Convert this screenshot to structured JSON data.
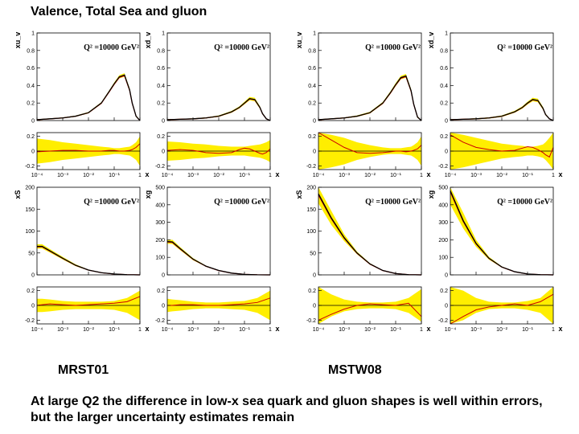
{
  "slide": {
    "title": "Valence, Total Sea and gluon",
    "label_left": "MRST01",
    "label_right": "MSTW08",
    "caption": "At large Q2 the difference in low-x sea quark and gluon shapes is well within errors, but the larger uncertainty estimates remain"
  },
  "colors": {
    "band": "#ffee00",
    "central": "#000000",
    "alt": "#cc0000",
    "frame": "#000000"
  },
  "chart_data": [
    {
      "type": "line",
      "id": "mrst01-xuv",
      "set": "MRST01",
      "ylabel": "xu_v",
      "annotation": "Q² =10000 GeV²",
      "xlabel": "x",
      "x_ticks": [
        "10⁻⁴",
        "10⁻³",
        "10⁻²",
        "10⁻¹",
        "1"
      ],
      "ylim": [
        0,
        1
      ],
      "y_ticks": [
        0,
        0.2,
        0.4,
        0.6,
        0.8,
        1
      ],
      "ratio_ylim": [
        -0.25,
        0.25
      ],
      "ratio_ticks": [
        -0.2,
        0,
        0.2
      ],
      "x": [
        -4,
        -3.5,
        -3,
        -2.5,
        -2,
        -1.5,
        -1.2,
        -1,
        -0.8,
        -0.6,
        -0.4,
        -0.3,
        -0.15,
        0
      ],
      "central": [
        0.01,
        0.02,
        0.03,
        0.05,
        0.09,
        0.2,
        0.33,
        0.42,
        0.5,
        0.52,
        0.35,
        0.2,
        0.05,
        0.0
      ],
      "band": [
        0.005,
        0.005,
        0.005,
        0.006,
        0.008,
        0.01,
        0.012,
        0.015,
        0.018,
        0.02,
        0.02,
        0.015,
        0.01,
        0.005
      ],
      "ratio_band": [
        0.17,
        0.15,
        0.12,
        0.1,
        0.08,
        0.06,
        0.05,
        0.04,
        0.04,
        0.05,
        0.06,
        0.08,
        0.12,
        0.2
      ],
      "ratio_alt": [
        -0.01,
        0,
        0.01,
        0.01,
        0,
        0,
        0.01,
        0.01,
        0,
        0,
        0.01,
        0.02,
        0.05,
        0.1
      ]
    },
    {
      "type": "line",
      "id": "mrst01-xdv",
      "set": "MRST01",
      "ylabel": "xd_v",
      "annotation": "Q² =10000 GeV²",
      "xlabel": "x",
      "x_ticks": [
        "10⁻⁴",
        "10⁻³",
        "10⁻²",
        "10⁻¹",
        "1"
      ],
      "ylim": [
        0,
        1
      ],
      "y_ticks": [
        0,
        0.2,
        0.4,
        0.6,
        0.8,
        1
      ],
      "ratio_ylim": [
        -0.25,
        0.25
      ],
      "ratio_ticks": [
        -0.2,
        0,
        0.2
      ],
      "x": [
        -4,
        -3.5,
        -3,
        -2.5,
        -2,
        -1.5,
        -1.2,
        -1,
        -0.8,
        -0.6,
        -0.4,
        -0.3,
        -0.15,
        0
      ],
      "central": [
        0.01,
        0.015,
        0.02,
        0.03,
        0.05,
        0.1,
        0.15,
        0.2,
        0.25,
        0.24,
        0.15,
        0.08,
        0.02,
        0.0
      ],
      "band": [
        0.005,
        0.005,
        0.005,
        0.006,
        0.008,
        0.01,
        0.012,
        0.015,
        0.02,
        0.02,
        0.015,
        0.01,
        0.005,
        0.003
      ],
      "ratio_band": [
        0.13,
        0.12,
        0.1,
        0.09,
        0.07,
        0.06,
        0.06,
        0.06,
        0.07,
        0.08,
        0.09,
        0.1,
        0.12,
        0.15
      ],
      "ratio_alt": [
        0.01,
        0.02,
        0.01,
        -0.02,
        -0.03,
        -0.02,
        0.02,
        0.04,
        0.03,
        0.0,
        -0.03,
        -0.04,
        -0.02,
        0.03
      ]
    },
    {
      "type": "line",
      "id": "mstw08-xuv",
      "set": "MSTW08",
      "ylabel": "xu_v",
      "annotation": "Q² =10000 GeV²",
      "xlabel": "x",
      "x_ticks": [
        "10⁻⁴",
        "10⁻³",
        "10⁻²",
        "10⁻¹",
        "1"
      ],
      "ylim": [
        0,
        1
      ],
      "y_ticks": [
        0,
        0.2,
        0.4,
        0.6,
        0.8,
        1
      ],
      "ratio_ylim": [
        -0.25,
        0.25
      ],
      "ratio_ticks": [
        -0.2,
        0,
        0.2
      ],
      "x": [
        -4,
        -3.5,
        -3,
        -2.5,
        -2,
        -1.5,
        -1.2,
        -1,
        -0.8,
        -0.6,
        -0.4,
        -0.3,
        -0.15,
        0
      ],
      "central": [
        0.01,
        0.02,
        0.03,
        0.05,
        0.09,
        0.2,
        0.32,
        0.41,
        0.49,
        0.51,
        0.34,
        0.19,
        0.04,
        0.0
      ],
      "band": [
        0.005,
        0.005,
        0.006,
        0.008,
        0.01,
        0.012,
        0.015,
        0.018,
        0.02,
        0.022,
        0.02,
        0.015,
        0.01,
        0.005
      ],
      "ratio_band": [
        0.25,
        0.22,
        0.18,
        0.12,
        0.08,
        0.05,
        0.04,
        0.04,
        0.04,
        0.05,
        0.06,
        0.08,
        0.12,
        0.2
      ],
      "ratio_alt": [
        0.25,
        0.15,
        0.05,
        -0.02,
        -0.03,
        -0.02,
        -0.01,
        0,
        0,
        -0.01,
        0,
        0.01,
        0.03,
        0.08
      ]
    },
    {
      "type": "line",
      "id": "mstw08-xdv",
      "set": "MSTW08",
      "ylabel": "xd_v",
      "annotation": "Q² =10000 GeV²",
      "xlabel": "x",
      "x_ticks": [
        "10⁻⁴",
        "10⁻³",
        "10⁻²",
        "10⁻¹",
        "1"
      ],
      "ylim": [
        0,
        1
      ],
      "y_ticks": [
        0,
        0.2,
        0.4,
        0.6,
        0.8,
        1
      ],
      "ratio_ylim": [
        -0.25,
        0.25
      ],
      "ratio_ticks": [
        -0.2,
        0,
        0.2
      ],
      "x": [
        -4,
        -3.5,
        -3,
        -2.5,
        -2,
        -1.5,
        -1.2,
        -1,
        -0.8,
        -0.6,
        -0.4,
        -0.3,
        -0.15,
        0
      ],
      "central": [
        0.01,
        0.015,
        0.02,
        0.03,
        0.05,
        0.1,
        0.15,
        0.2,
        0.24,
        0.23,
        0.14,
        0.07,
        0.02,
        0.0
      ],
      "band": [
        0.005,
        0.005,
        0.006,
        0.007,
        0.009,
        0.011,
        0.013,
        0.016,
        0.02,
        0.02,
        0.016,
        0.01,
        0.005,
        0.003
      ],
      "ratio_band": [
        0.25,
        0.22,
        0.18,
        0.14,
        0.1,
        0.08,
        0.07,
        0.06,
        0.06,
        0.07,
        0.09,
        0.12,
        0.18,
        0.25
      ],
      "ratio_alt": [
        0.22,
        0.12,
        0.05,
        0.02,
        0.0,
        0.01,
        0.04,
        0.06,
        0.05,
        0.02,
        -0.02,
        -0.05,
        -0.08,
        0.05
      ]
    },
    {
      "type": "line",
      "id": "mrst01-xs",
      "set": "MRST01",
      "ylabel": "xS",
      "annotation": "Q² =10000 GeV²",
      "xlabel": "x",
      "x_ticks": [
        "10⁻⁴",
        "10⁻³",
        "10⁻²",
        "10⁻¹",
        "1"
      ],
      "ylim": [
        0,
        200
      ],
      "y_ticks": [
        0,
        50,
        100,
        150,
        200
      ],
      "ratio_ylim": [
        -0.25,
        0.25
      ],
      "ratio_ticks": [
        -0.2,
        0,
        0.2
      ],
      "x": [
        -4,
        -3.8,
        -3.5,
        -3,
        -2.5,
        -2,
        -1.5,
        -1,
        -0.5,
        0
      ],
      "central": [
        65,
        65,
        55,
        38,
        22,
        11,
        5,
        2,
        0.5,
        0
      ],
      "band": [
        5,
        5,
        4,
        3,
        2,
        1,
        0.5,
        0.3,
        0.2,
        0.1
      ],
      "ratio_band": [
        0.09,
        0.09,
        0.08,
        0.06,
        0.05,
        0.05,
        0.05,
        0.06,
        0.1,
        0.2
      ],
      "ratio_alt": [
        0.0,
        0.01,
        0.02,
        0.01,
        0.0,
        0.01,
        0.02,
        0.03,
        0.05,
        0.12
      ]
    },
    {
      "type": "line",
      "id": "mrst01-xg",
      "set": "MRST01",
      "ylabel": "xg",
      "annotation": "Q² =10000 GeV²",
      "xlabel": "x",
      "x_ticks": [
        "10⁻⁴",
        "10⁻³",
        "10⁻²",
        "10⁻¹",
        "1"
      ],
      "ylim": [
        0,
        500
      ],
      "y_ticks": [
        0,
        100,
        200,
        300,
        400,
        500
      ],
      "ratio_ylim": [
        -0.25,
        0.25
      ],
      "ratio_ticks": [
        -0.2,
        0,
        0.2
      ],
      "x": [
        -4,
        -3.8,
        -3.5,
        -3,
        -2.5,
        -2,
        -1.5,
        -1,
        -0.5,
        0
      ],
      "central": [
        190,
        188,
        150,
        90,
        50,
        25,
        10,
        3,
        0.5,
        0
      ],
      "band": [
        12,
        12,
        9,
        6,
        3,
        1.5,
        0.6,
        0.3,
        0.2,
        0.1
      ],
      "ratio_band": [
        0.09,
        0.08,
        0.07,
        0.05,
        0.04,
        0.04,
        0.05,
        0.06,
        0.1,
        0.2
      ],
      "ratio_alt": [
        0.0,
        0.0,
        0.01,
        0.01,
        0.0,
        0.0,
        0.01,
        0.02,
        0.04,
        0.1
      ]
    },
    {
      "type": "line",
      "id": "mstw08-xs",
      "set": "MSTW08",
      "ylabel": "xS",
      "annotation": "Q² =10000 GeV²",
      "xlabel": "x",
      "x_ticks": [
        "10⁻⁴",
        "10⁻³",
        "10⁻²",
        "10⁻¹",
        "1"
      ],
      "ylim": [
        0,
        200
      ],
      "y_ticks": [
        0,
        50,
        100,
        150,
        200
      ],
      "ratio_ylim": [
        -0.25,
        0.25
      ],
      "ratio_ticks": [
        -0.2,
        0,
        0.2
      ],
      "x": [
        -4,
        -3.5,
        -3,
        -2.5,
        -2,
        -1.5,
        -1,
        -0.5,
        0
      ],
      "central": [
        185,
        130,
        85,
        50,
        25,
        10,
        3,
        0.5,
        0
      ],
      "band": [
        22,
        16,
        8,
        3,
        1.5,
        0.6,
        0.3,
        0.2,
        0.1
      ],
      "ratio_band": [
        0.25,
        0.15,
        0.08,
        0.05,
        0.04,
        0.04,
        0.05,
        0.1,
        0.22
      ],
      "ratio_alt": [
        -0.2,
        -0.12,
        -0.05,
        0.0,
        0.02,
        0.01,
        0.0,
        0.03,
        -0.15
      ]
    },
    {
      "type": "line",
      "id": "mstw08-xg",
      "set": "MSTW08",
      "ylabel": "xg",
      "annotation": "Q² =10000 GeV²",
      "xlabel": "x",
      "x_ticks": [
        "10⁻⁴",
        "10⁻³",
        "10⁻²",
        "10⁻¹",
        "1"
      ],
      "ylim": [
        0,
        500
      ],
      "y_ticks": [
        0,
        100,
        200,
        300,
        400,
        500
      ],
      "ratio_ylim": [
        -0.25,
        0.25
      ],
      "ratio_ticks": [
        -0.2,
        0,
        0.2
      ],
      "x": [
        -4,
        -3.5,
        -3,
        -2.5,
        -2,
        -1.5,
        -1,
        -0.5,
        0
      ],
      "central": [
        480,
        310,
        180,
        95,
        45,
        18,
        5,
        1,
        0
      ],
      "band": [
        80,
        45,
        20,
        8,
        3,
        1,
        0.4,
        0.2,
        0.1
      ],
      "ratio_band": [
        0.3,
        0.2,
        0.1,
        0.05,
        0.04,
        0.04,
        0.06,
        0.1,
        0.25
      ],
      "ratio_alt": [
        -0.25,
        -0.15,
        -0.06,
        -0.02,
        0.0,
        0.02,
        0.0,
        0.05,
        0.15
      ]
    }
  ]
}
